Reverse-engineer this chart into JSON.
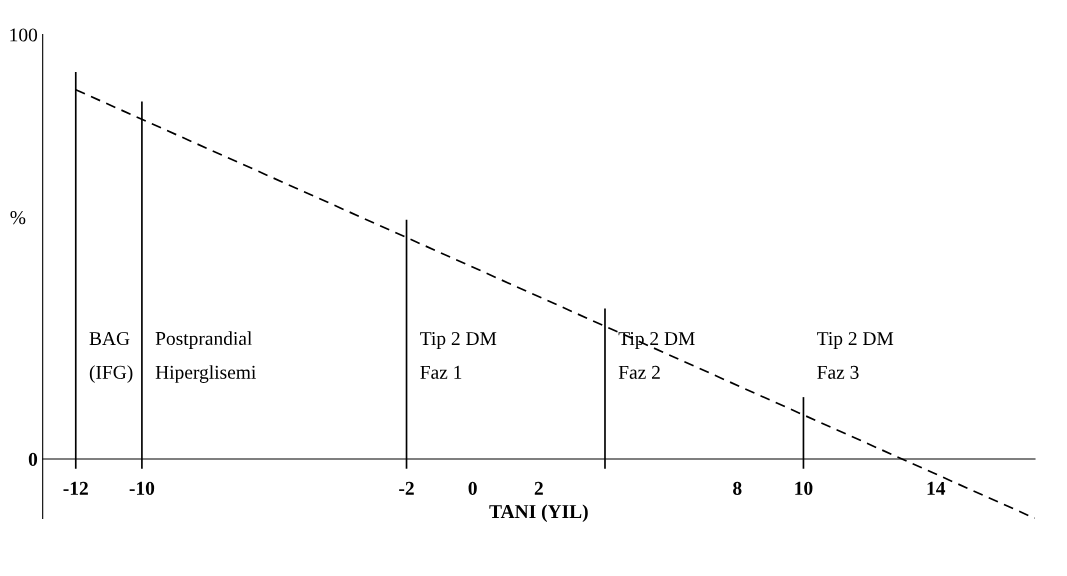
{
  "chart_data": {
    "type": "line",
    "xlabel": "TANI (YIL)",
    "ylabel": "%",
    "ylim": [
      -14,
      100
    ],
    "x": [
      -12,
      17
    ],
    "series": [
      {
        "color": "#000000",
        "values": [
          87,
          -14
        ],
        "line_style": "dashed"
      }
    ],
    "xlim": [
      -13,
      17
    ],
    "xticks": [
      -12,
      -10,
      -2,
      0,
      2,
      8,
      10,
      14
    ],
    "yticks": [
      {
        "value": 0,
        "label": "0"
      },
      {
        "value": 100,
        "label": "100"
      }
    ],
    "grid": false,
    "marker": "none",
    "ref_lines": [
      {
        "axis": "x",
        "value": -12,
        "label": "BAG\n(IFG)",
        "color": "#000000"
      },
      {
        "axis": "x",
        "value": -10,
        "label": "Postprandial\nHiperglisemi",
        "color": "#000000"
      },
      {
        "axis": "x",
        "value": -2,
        "label": "Tip 2 DM\nFaz 1",
        "color": "#000000"
      },
      {
        "axis": "x",
        "value": 4,
        "label": "Tip 2 DM\nFaz 2",
        "color": "#000000"
      },
      {
        "axis": "x",
        "value": 10,
        "label": "Tip 2 DM\nFaz 3",
        "color": "#000000"
      }
    ]
  }
}
